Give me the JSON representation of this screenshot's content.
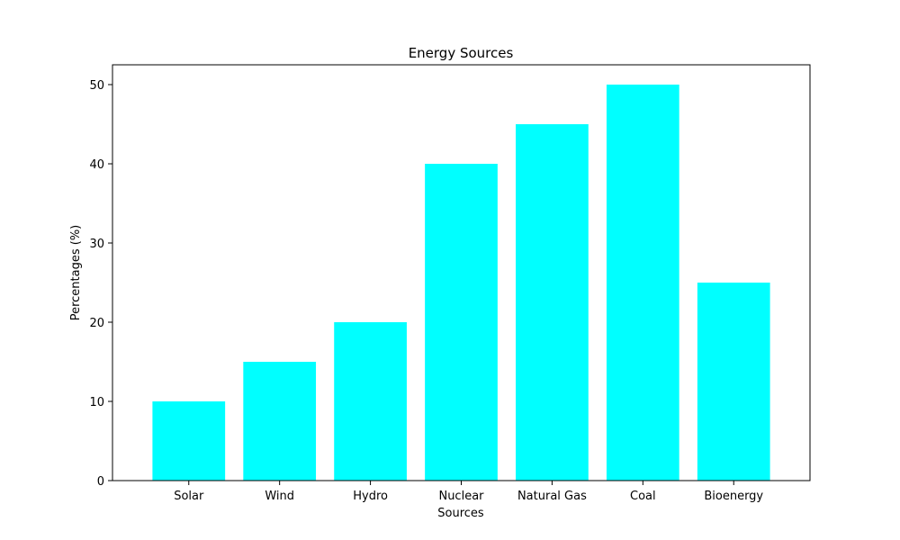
{
  "chart_data": {
    "type": "bar",
    "title": "Energy Sources",
    "xlabel": "Sources",
    "ylabel": "Percentages (%)",
    "categories": [
      "Solar",
      "Wind",
      "Hydro",
      "Nuclear",
      "Natural Gas",
      "Coal",
      "Bioenergy"
    ],
    "values": [
      10,
      15,
      20,
      40,
      45,
      50,
      25
    ],
    "ylim": [
      0,
      52.5
    ],
    "yticks": [
      0,
      10,
      20,
      30,
      40,
      50
    ],
    "bar_color": "#00ffff",
    "grid": false,
    "legend": "none"
  }
}
